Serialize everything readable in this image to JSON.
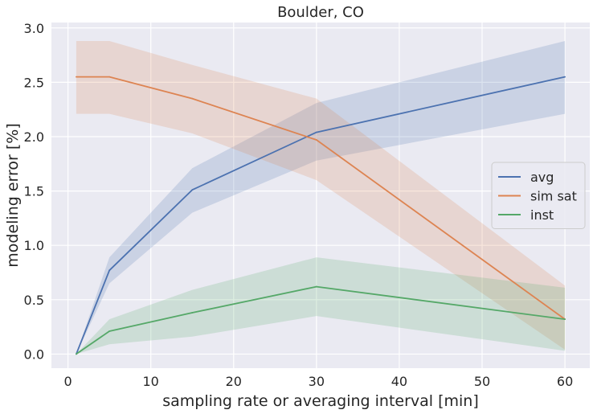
{
  "chart_data": {
    "type": "line",
    "title": "Boulder, CO",
    "xlabel": "sampling rate or averaging interval [min]",
    "ylabel": "modeling error [%]",
    "xlim": [
      -2.0,
      63.0
    ],
    "ylim": [
      -0.13,
      3.05
    ],
    "xticks": [
      0,
      10,
      20,
      30,
      40,
      50,
      60
    ],
    "xtick_labels": [
      "0",
      "10",
      "20",
      "30",
      "40",
      "50",
      "60"
    ],
    "yticks": [
      0.0,
      0.5,
      1.0,
      1.5,
      2.0,
      2.5,
      3.0
    ],
    "ytick_labels": [
      "0.0",
      "0.5",
      "1.0",
      "1.5",
      "2.0",
      "2.5",
      "3.0"
    ],
    "grid": true,
    "legend_position": "center-right",
    "x": [
      1,
      5,
      15,
      30,
      60
    ],
    "series": [
      {
        "name": "avg",
        "color": "#4c72b0",
        "values": [
          0.0,
          0.77,
          1.51,
          2.04,
          2.55
        ],
        "lower": [
          0.0,
          0.65,
          1.3,
          1.78,
          2.21
        ],
        "upper": [
          0.0,
          0.89,
          1.71,
          2.31,
          2.88
        ]
      },
      {
        "name": "sim sat",
        "color": "#dd8452",
        "values": [
          2.55,
          2.55,
          2.35,
          1.97,
          0.32
        ],
        "lower": [
          2.21,
          2.21,
          2.03,
          1.6,
          0.04
        ],
        "upper": [
          2.88,
          2.88,
          2.66,
          2.35,
          0.63
        ]
      },
      {
        "name": "inst",
        "color": "#55a868",
        "values": [
          0.0,
          0.21,
          0.38,
          0.62,
          0.32
        ],
        "lower": [
          0.0,
          0.09,
          0.16,
          0.35,
          0.03
        ],
        "upper": [
          0.0,
          0.32,
          0.59,
          0.89,
          0.61
        ]
      }
    ]
  }
}
